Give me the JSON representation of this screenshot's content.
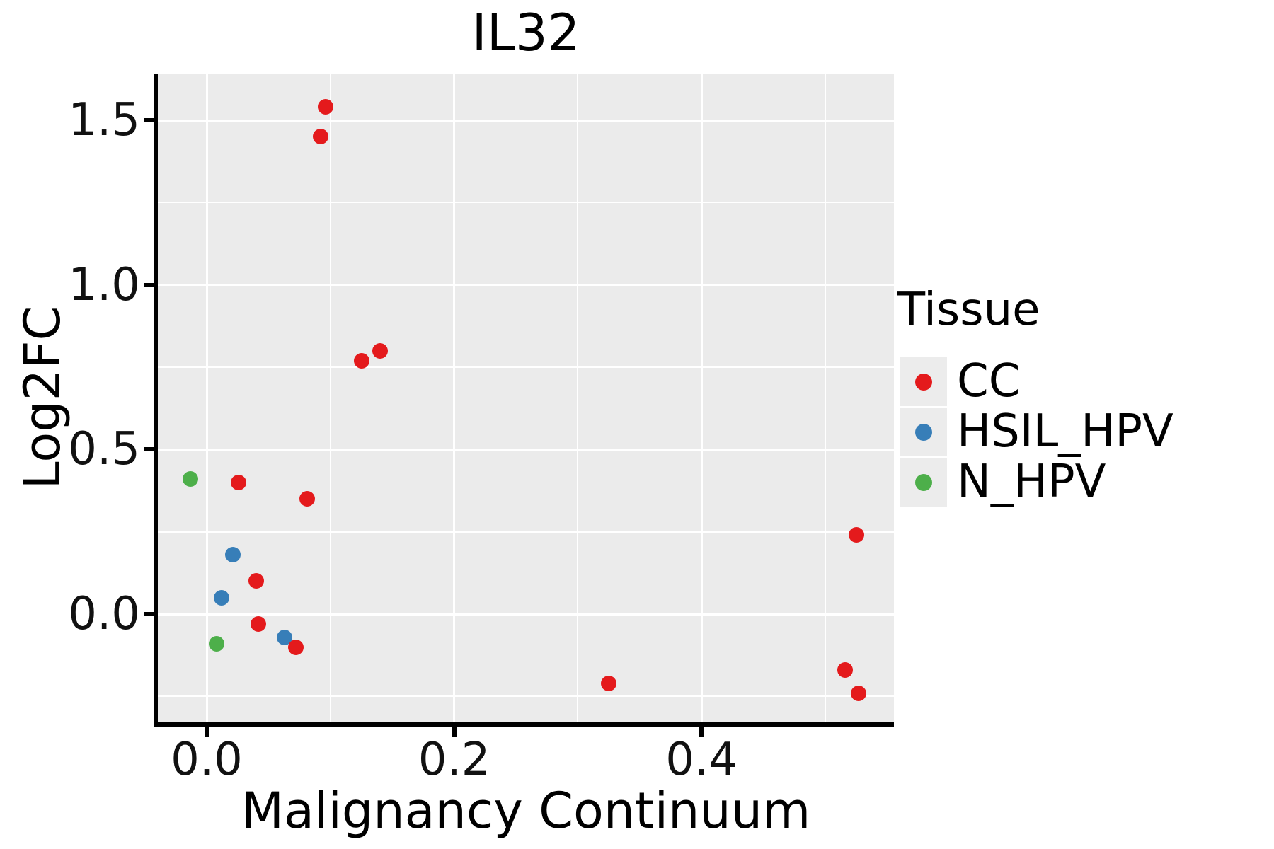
{
  "title": "IL32",
  "axes": {
    "x": {
      "label": "Malignancy Continuum",
      "tick_labels": [
        "0.0",
        "0.2",
        "0.4"
      ],
      "tick_values": [
        0.0,
        0.2,
        0.4
      ]
    },
    "y": {
      "label": "Log2FC",
      "tick_labels": [
        "0.0",
        "0.5",
        "1.0",
        "1.5"
      ],
      "tick_values": [
        0.0,
        0.5,
        1.0,
        1.5
      ]
    }
  },
  "legend": {
    "title": "Tissue",
    "entries": [
      {
        "label": "CC",
        "color": "#E41A1C"
      },
      {
        "label": "HSIL_HPV",
        "color": "#377EB8"
      },
      {
        "label": "N_HPV",
        "color": "#4DAF4A"
      }
    ]
  },
  "colors": {
    "panel_background": "#EBEBEB",
    "gridline": "#FFFFFF",
    "axis": "#000000",
    "text": "#000000",
    "legend_key_background": "#ECECEC"
  },
  "chart_data": {
    "type": "scatter",
    "title": "IL32",
    "xlabel": "Malignancy Continuum",
    "ylabel": "Log2FC",
    "xlim": [
      -0.04,
      0.556
    ],
    "ylim": [
      -0.33,
      1.64
    ],
    "x_ticks": [
      0.0,
      0.2,
      0.4
    ],
    "y_ticks": [
      0.0,
      0.5,
      1.0,
      1.5
    ],
    "grid": "white major and minor gridlines on gray panel",
    "legend_position": "right",
    "series": [
      {
        "name": "CC",
        "color": "#E41A1C",
        "points": [
          [
            0.096,
            1.54
          ],
          [
            0.092,
            1.45
          ],
          [
            0.14,
            0.8
          ],
          [
            0.125,
            0.77
          ],
          [
            0.026,
            0.4
          ],
          [
            0.081,
            0.35
          ],
          [
            0.04,
            0.1
          ],
          [
            0.042,
            -0.03
          ],
          [
            0.072,
            -0.1
          ],
          [
            0.325,
            -0.21
          ],
          [
            0.525,
            0.24
          ],
          [
            0.516,
            -0.17
          ],
          [
            0.527,
            -0.24
          ]
        ]
      },
      {
        "name": "HSIL_HPV",
        "color": "#377EB8",
        "points": [
          [
            0.021,
            0.18
          ],
          [
            0.012,
            0.05
          ],
          [
            0.063,
            -0.07
          ]
        ]
      },
      {
        "name": "N_HPV",
        "color": "#4DAF4A",
        "points": [
          [
            -0.013,
            0.41
          ],
          [
            0.008,
            -0.09
          ]
        ]
      }
    ]
  }
}
